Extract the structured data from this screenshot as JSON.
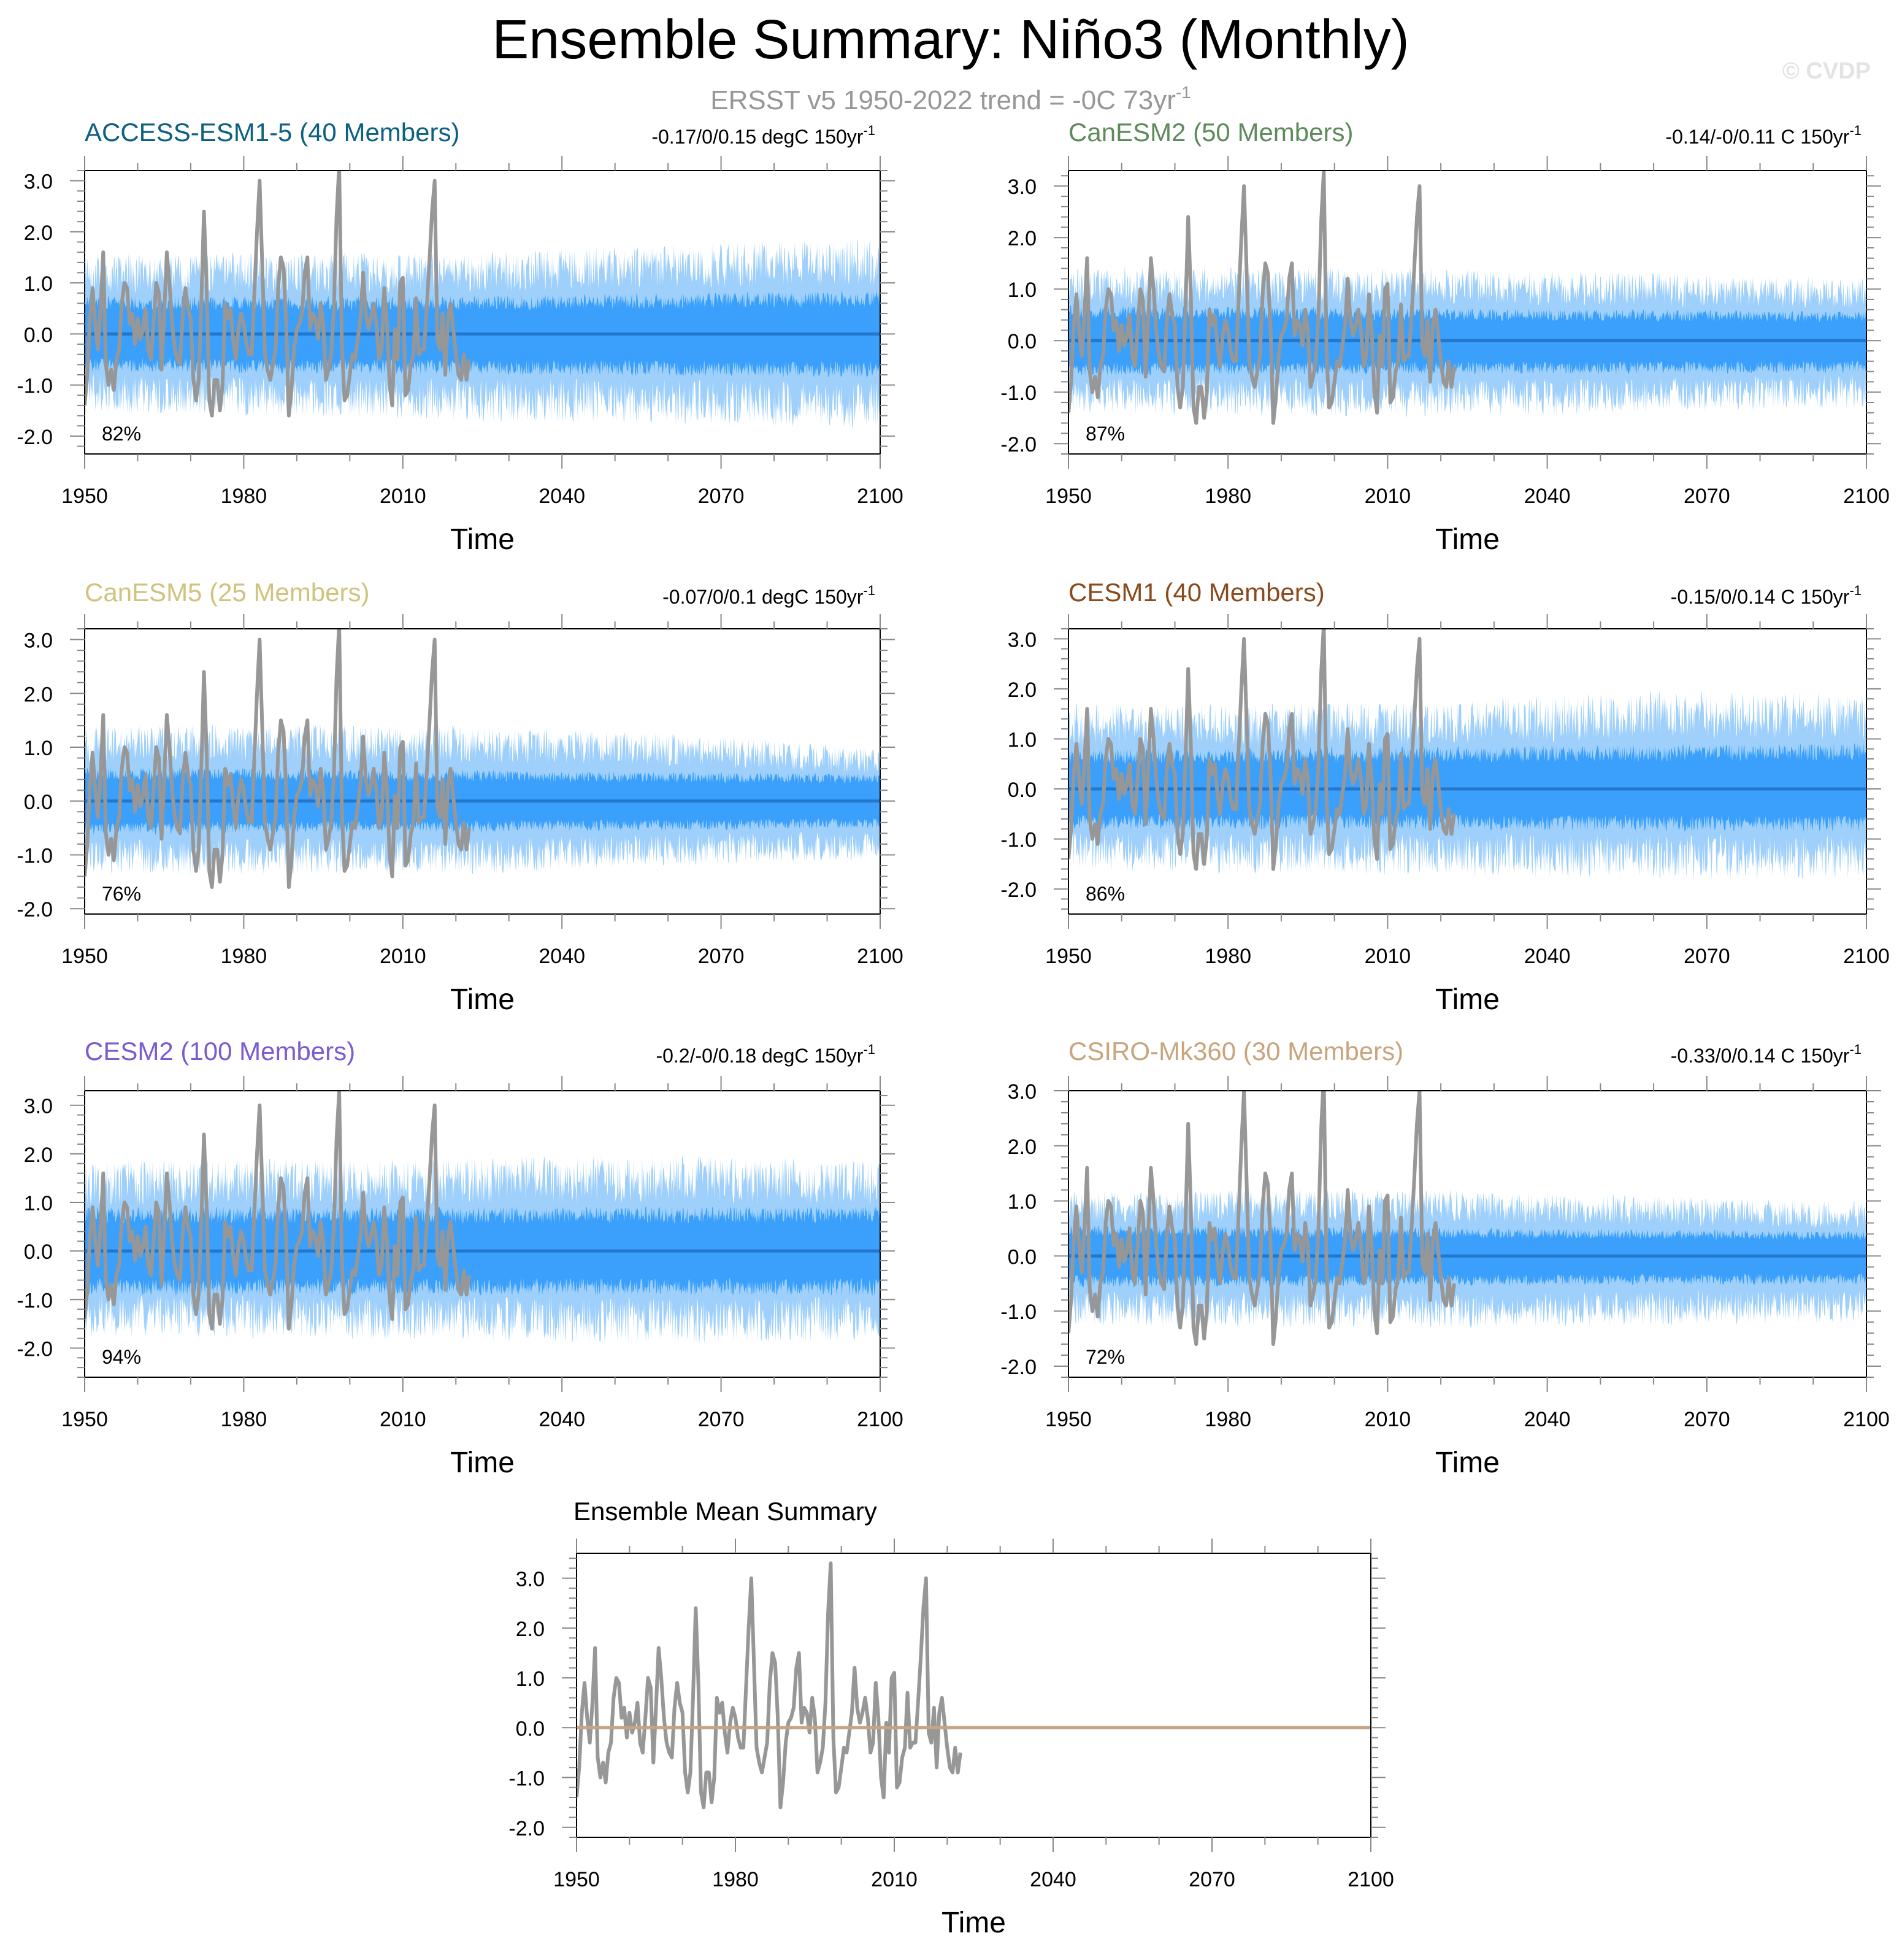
{
  "title": "Ensemble Summary: Niño3 (Monthly)",
  "subtitle": {
    "text": "ERSST v5 1950-2022 trend = -0C 73yr",
    "sup": "-1"
  },
  "watermark": "© CVDP",
  "colors": {
    "outer_band": "#9fd0fb",
    "inner_band": "#3aa0fb",
    "ens_mean_line": "#2277cc",
    "obs_line": "#979797",
    "summary_mean_line": "#c4a585",
    "axis": "#000000"
  },
  "chart_data": [
    {
      "type": "line",
      "id": "access",
      "model": "ACCESS-ESM1-5 (40 Members)",
      "model_color": "#0c6080",
      "trend": {
        "text": "-0.17/0/0.15 degC 150yr",
        "sup": "-1"
      },
      "percent": "82%",
      "xlabel": "Time",
      "xlim": [
        1950,
        2100
      ],
      "xticks": [
        "1950",
        "1980",
        "2010",
        "2040",
        "2070",
        "2100"
      ],
      "ylim": [
        -2.35,
        3.2
      ],
      "yticks": [
        "3.0",
        "2.0",
        "1.0",
        "0.0",
        "-1.0",
        "-2.0"
      ],
      "ytick_values": [
        3,
        2,
        1,
        0,
        -1,
        -2
      ],
      "outer_range": [
        {
          "x": 1950,
          "lo": -1.4,
          "hi": 1.45
        },
        {
          "x": 2020,
          "lo": -1.55,
          "hi": 1.45
        },
        {
          "x": 2060,
          "lo": -1.6,
          "hi": 1.6
        },
        {
          "x": 2100,
          "lo": -1.7,
          "hi": 1.75
        }
      ],
      "inner_range": [
        {
          "x": 1950,
          "lo": -0.65,
          "hi": 0.65
        },
        {
          "x": 2020,
          "lo": -0.7,
          "hi": 0.65
        },
        {
          "x": 2100,
          "lo": -0.75,
          "hi": 0.75
        }
      ],
      "ensemble_mean": [
        {
          "x": 1950,
          "y": 0
        },
        {
          "x": 2100,
          "y": 0
        }
      ]
    },
    {
      "type": "line",
      "id": "canesm2",
      "model": "CanESM2 (50 Members)",
      "model_color": "#5e8a5c",
      "trend": {
        "text": "-0.14/-0/0.11 C 150yr",
        "sup": "-1"
      },
      "percent": "87%",
      "xlabel": "Time",
      "xlim": [
        1950,
        2100
      ],
      "xticks": [
        "1950",
        "1980",
        "2010",
        "2040",
        "2070",
        "2100"
      ],
      "ylim": [
        -2.2,
        3.3
      ],
      "yticks": [
        "3.0",
        "2.0",
        "1.0",
        "0.0",
        "-1.0",
        "-2.0"
      ],
      "ytick_values": [
        3,
        2,
        1,
        0,
        -1,
        -2
      ],
      "outer_range": [
        {
          "x": 1950,
          "lo": -1.3,
          "hi": 1.3
        },
        {
          "x": 2020,
          "lo": -1.35,
          "hi": 1.3
        },
        {
          "x": 2100,
          "lo": -1.2,
          "hi": 1.1
        }
      ],
      "inner_range": [
        {
          "x": 1950,
          "lo": -0.6,
          "hi": 0.6
        },
        {
          "x": 2100,
          "lo": -0.55,
          "hi": 0.5
        }
      ],
      "ensemble_mean": [
        {
          "x": 1950,
          "y": 0
        },
        {
          "x": 2100,
          "y": 0
        }
      ]
    },
    {
      "type": "line",
      "id": "canesm5",
      "model": "CanESM5 (25 Members)",
      "model_color": "#cfc37d",
      "trend": {
        "text": "-0.07/0/0.1 degC 150yr",
        "sup": "-1"
      },
      "percent": "76%",
      "xlabel": "Time",
      "xlim": [
        1950,
        2100
      ],
      "xticks": [
        "1950",
        "1980",
        "2010",
        "2040",
        "2070",
        "2100"
      ],
      "ylim": [
        -2.1,
        3.2
      ],
      "yticks": [
        "3.0",
        "2.0",
        "1.0",
        "0.0",
        "-1.0",
        "-2.0"
      ],
      "ytick_values": [
        3,
        2,
        1,
        0,
        -1,
        -2
      ],
      "outer_range": [
        {
          "x": 1950,
          "lo": -1.25,
          "hi": 1.3
        },
        {
          "x": 2020,
          "lo": -1.25,
          "hi": 1.3
        },
        {
          "x": 2060,
          "lo": -1.1,
          "hi": 1.15
        },
        {
          "x": 2100,
          "lo": -1.0,
          "hi": 0.9
        }
      ],
      "inner_range": [
        {
          "x": 1950,
          "lo": -0.55,
          "hi": 0.55
        },
        {
          "x": 2100,
          "lo": -0.45,
          "hi": 0.45
        }
      ],
      "ensemble_mean": [
        {
          "x": 1950,
          "y": 0
        },
        {
          "x": 2100,
          "y": 0
        }
      ]
    },
    {
      "type": "line",
      "id": "cesm1",
      "model": "CESM1 (40 Members)",
      "model_color": "#8a4a1c",
      "trend": {
        "text": "-0.15/0/0.14 C 150yr",
        "sup": "-1"
      },
      "percent": "86%",
      "xlabel": "Time",
      "xlim": [
        1950,
        2100
      ],
      "xticks": [
        "1950",
        "1980",
        "2010",
        "2040",
        "2070",
        "2100"
      ],
      "ylim": [
        -2.5,
        3.2
      ],
      "yticks": [
        "3.0",
        "2.0",
        "1.0",
        "0.0",
        "-1.0",
        "-2.0"
      ],
      "ytick_values": [
        3,
        2,
        1,
        0,
        -1,
        -2
      ],
      "outer_range": [
        {
          "x": 1950,
          "lo": -1.5,
          "hi": 1.55
        },
        {
          "x": 2020,
          "lo": -1.6,
          "hi": 1.6
        },
        {
          "x": 2060,
          "lo": -1.65,
          "hi": 1.8
        },
        {
          "x": 2100,
          "lo": -1.65,
          "hi": 1.75
        }
      ],
      "inner_range": [
        {
          "x": 1950,
          "lo": -0.7,
          "hi": 0.7
        },
        {
          "x": 2100,
          "lo": -0.75,
          "hi": 0.8
        }
      ],
      "ensemble_mean": [
        {
          "x": 1950,
          "y": 0
        },
        {
          "x": 2100,
          "y": 0
        }
      ]
    },
    {
      "type": "line",
      "id": "cesm2",
      "model": "CESM2 (100 Members)",
      "model_color": "#7b5bcf",
      "trend": {
        "text": "-0.2/-0/0.18 degC 150yr",
        "sup": "-1"
      },
      "percent": "94%",
      "xlabel": "Time",
      "xlim": [
        1950,
        2100
      ],
      "xticks": [
        "1950",
        "1980",
        "2010",
        "2040",
        "2070",
        "2100"
      ],
      "ylim": [
        -2.6,
        3.3
      ],
      "yticks": [
        "3.0",
        "2.0",
        "1.0",
        "0.0",
        "-1.0",
        "-2.0"
      ],
      "ytick_values": [
        3,
        2,
        1,
        0,
        -1,
        -2
      ],
      "outer_range": [
        {
          "x": 1950,
          "lo": -1.6,
          "hi": 1.7
        },
        {
          "x": 2020,
          "lo": -1.7,
          "hi": 1.75
        },
        {
          "x": 2060,
          "lo": -1.75,
          "hi": 1.8
        },
        {
          "x": 2100,
          "lo": -1.7,
          "hi": 1.7
        }
      ],
      "inner_range": [
        {
          "x": 1950,
          "lo": -0.8,
          "hi": 0.8
        },
        {
          "x": 2100,
          "lo": -0.8,
          "hi": 0.8
        }
      ],
      "ensemble_mean": [
        {
          "x": 1950,
          "y": 0
        },
        {
          "x": 2100,
          "y": 0
        }
      ]
    },
    {
      "type": "line",
      "id": "csiro",
      "model": "CSIRO-Mk360 (30 Members)",
      "model_color": "#c8a57d",
      "trend": {
        "text": "-0.33/0/0.14 C 150yr",
        "sup": "-1"
      },
      "percent": "72%",
      "xlabel": "Time",
      "xlim": [
        1950,
        2100
      ],
      "xticks": [
        "1950",
        "1980",
        "2010",
        "2040",
        "2070",
        "2100"
      ],
      "ylim": [
        -2.2,
        3.0
      ],
      "yticks": [
        "3.0",
        "2.0",
        "1.0",
        "0.0",
        "-1.0",
        "-2.0"
      ],
      "ytick_values": [
        3,
        2,
        1,
        0,
        -1,
        -2
      ],
      "outer_range": [
        {
          "x": 1950,
          "lo": -1.15,
          "hi": 1.1
        },
        {
          "x": 2020,
          "lo": -1.2,
          "hi": 1.1
        },
        {
          "x": 2100,
          "lo": -1.1,
          "hi": 0.9
        }
      ],
      "inner_range": [
        {
          "x": 1950,
          "lo": -0.5,
          "hi": 0.5
        },
        {
          "x": 2100,
          "lo": -0.45,
          "hi": 0.4
        }
      ],
      "ensemble_mean": [
        {
          "x": 1950,
          "y": 0
        },
        {
          "x": 2100,
          "y": 0
        }
      ]
    },
    {
      "type": "line",
      "id": "summary",
      "model": "Ensemble Mean Summary",
      "model_color": "#000000",
      "trend": null,
      "percent": null,
      "xlabel": "Time",
      "xlim": [
        1950,
        2100
      ],
      "xticks": [
        "1950",
        "1980",
        "2010",
        "2040",
        "2070",
        "2100"
      ],
      "ylim": [
        -2.2,
        3.5
      ],
      "yticks": [
        "3.0",
        "2.0",
        "1.0",
        "0.0",
        "-1.0",
        "-2.0"
      ],
      "ytick_values": [
        3,
        2,
        1,
        0,
        -1,
        -2
      ],
      "outer_range": null,
      "inner_range": null,
      "ensemble_mean": [
        {
          "x": 1950,
          "y": 0
        },
        {
          "x": 2100,
          "y": 0
        }
      ]
    }
  ],
  "observations": {
    "name": "ERSST v5",
    "color": "#979797",
    "points": [
      [
        1950.0,
        -1.4
      ],
      [
        1950.5,
        -0.8
      ],
      [
        1951.0,
        0.3
      ],
      [
        1951.5,
        0.9
      ],
      [
        1952.0,
        0.2
      ],
      [
        1952.5,
        -0.3
      ],
      [
        1953.0,
        0.5
      ],
      [
        1953.5,
        1.6
      ],
      [
        1954.0,
        -0.6
      ],
      [
        1954.5,
        -1.0
      ],
      [
        1955.0,
        -0.7
      ],
      [
        1955.5,
        -1.1
      ],
      [
        1956.0,
        -0.5
      ],
      [
        1956.5,
        -0.3
      ],
      [
        1957.0,
        0.6
      ],
      [
        1957.5,
        1.0
      ],
      [
        1958.0,
        0.9
      ],
      [
        1958.5,
        0.2
      ],
      [
        1959.0,
        0.4
      ],
      [
        1959.5,
        -0.2
      ],
      [
        1960.0,
        0.3
      ],
      [
        1960.5,
        -0.1
      ],
      [
        1961.0,
        0.1
      ],
      [
        1961.5,
        0.5
      ],
      [
        1962.0,
        -0.3
      ],
      [
        1962.5,
        -0.5
      ],
      [
        1963.0,
        0.2
      ],
      [
        1963.5,
        1.0
      ],
      [
        1964.0,
        0.8
      ],
      [
        1964.5,
        -0.7
      ],
      [
        1965.0,
        0.4
      ],
      [
        1965.5,
        1.6
      ],
      [
        1966.0,
        1.0
      ],
      [
        1966.5,
        0.2
      ],
      [
        1967.0,
        -0.3
      ],
      [
        1967.5,
        -0.5
      ],
      [
        1968.0,
        -0.6
      ],
      [
        1968.5,
        0.4
      ],
      [
        1969.0,
        0.9
      ],
      [
        1969.5,
        0.5
      ],
      [
        1970.0,
        0.3
      ],
      [
        1970.5,
        -0.9
      ],
      [
        1971.0,
        -1.3
      ],
      [
        1971.5,
        -0.9
      ],
      [
        1972.0,
        0.6
      ],
      [
        1972.5,
        2.4
      ],
      [
        1973.0,
        0.9
      ],
      [
        1973.5,
        -1.3
      ],
      [
        1974.0,
        -1.6
      ],
      [
        1974.5,
        -0.9
      ],
      [
        1975.0,
        -0.9
      ],
      [
        1975.5,
        -1.5
      ],
      [
        1976.0,
        -1.0
      ],
      [
        1976.5,
        0.6
      ],
      [
        1977.0,
        0.3
      ],
      [
        1977.5,
        0.5
      ],
      [
        1978.0,
        -0.1
      ],
      [
        1978.5,
        -0.5
      ],
      [
        1979.0,
        0.1
      ],
      [
        1979.5,
        0.4
      ],
      [
        1980.0,
        0.2
      ],
      [
        1980.5,
        -0.2
      ],
      [
        1981.0,
        -0.4
      ],
      [
        1981.5,
        -0.4
      ],
      [
        1982.0,
        0.8
      ],
      [
        1982.5,
        2.0
      ],
      [
        1983.0,
        3.0
      ],
      [
        1983.5,
        1.3
      ],
      [
        1984.0,
        -0.4
      ],
      [
        1984.5,
        -0.7
      ],
      [
        1985.0,
        -0.9
      ],
      [
        1985.5,
        -0.6
      ],
      [
        1986.0,
        -0.3
      ],
      [
        1986.5,
        0.9
      ],
      [
        1987.0,
        1.5
      ],
      [
        1987.5,
        1.3
      ],
      [
        1988.0,
        0.2
      ],
      [
        1988.5,
        -1.6
      ],
      [
        1989.0,
        -1.1
      ],
      [
        1989.5,
        -0.3
      ],
      [
        1990.0,
        0.1
      ],
      [
        1990.5,
        0.2
      ],
      [
        1991.0,
        0.4
      ],
      [
        1991.5,
        1.2
      ],
      [
        1992.0,
        1.5
      ],
      [
        1992.5,
        0.1
      ],
      [
        1993.0,
        0.4
      ],
      [
        1993.5,
        0.3
      ],
      [
        1994.0,
        -0.1
      ],
      [
        1994.5,
        0.6
      ],
      [
        1995.0,
        0.2
      ],
      [
        1995.5,
        -0.9
      ],
      [
        1996.0,
        -0.7
      ],
      [
        1996.5,
        -0.4
      ],
      [
        1997.0,
        0.5
      ],
      [
        1997.5,
        2.3
      ],
      [
        1998.0,
        3.3
      ],
      [
        1998.5,
        -0.2
      ],
      [
        1999.0,
        -1.3
      ],
      [
        1999.5,
        -1.2
      ],
      [
        2000.0,
        -0.8
      ],
      [
        2000.5,
        -0.4
      ],
      [
        2001.0,
        -0.5
      ],
      [
        2001.5,
        -0.1
      ],
      [
        2002.0,
        0.3
      ],
      [
        2002.5,
        1.2
      ],
      [
        2003.0,
        0.4
      ],
      [
        2003.5,
        0.1
      ],
      [
        2004.0,
        0.3
      ],
      [
        2004.5,
        0.6
      ],
      [
        2005.0,
        0.2
      ],
      [
        2005.5,
        -0.5
      ],
      [
        2006.0,
        -0.3
      ],
      [
        2006.5,
        0.9
      ],
      [
        2007.0,
        0.2
      ],
      [
        2007.5,
        -1.0
      ],
      [
        2008.0,
        -1.4
      ],
      [
        2008.5,
        0.1
      ],
      [
        2009.0,
        -0.5
      ],
      [
        2009.5,
        1.0
      ],
      [
        2010.0,
        1.1
      ],
      [
        2010.5,
        -1.2
      ],
      [
        2011.0,
        -1.1
      ],
      [
        2011.5,
        -0.6
      ],
      [
        2012.0,
        -0.4
      ],
      [
        2012.5,
        0.7
      ],
      [
        2013.0,
        -0.4
      ],
      [
        2013.5,
        -0.3
      ],
      [
        2014.0,
        -0.3
      ],
      [
        2014.5,
        0.5
      ],
      [
        2015.0,
        1.4
      ],
      [
        2015.5,
        2.4
      ],
      [
        2016.0,
        3.0
      ],
      [
        2016.5,
        -0.1
      ],
      [
        2017.0,
        -0.3
      ],
      [
        2017.5,
        0.4
      ],
      [
        2018.0,
        -0.8
      ],
      [
        2018.5,
        0.3
      ],
      [
        2019.0,
        0.6
      ],
      [
        2019.5,
        0.1
      ],
      [
        2020.0,
        -0.4
      ],
      [
        2020.5,
        -0.8
      ],
      [
        2021.0,
        -0.9
      ],
      [
        2021.5,
        -0.4
      ],
      [
        2022.0,
        -0.9
      ],
      [
        2022.5,
        -0.5
      ]
    ]
  }
}
